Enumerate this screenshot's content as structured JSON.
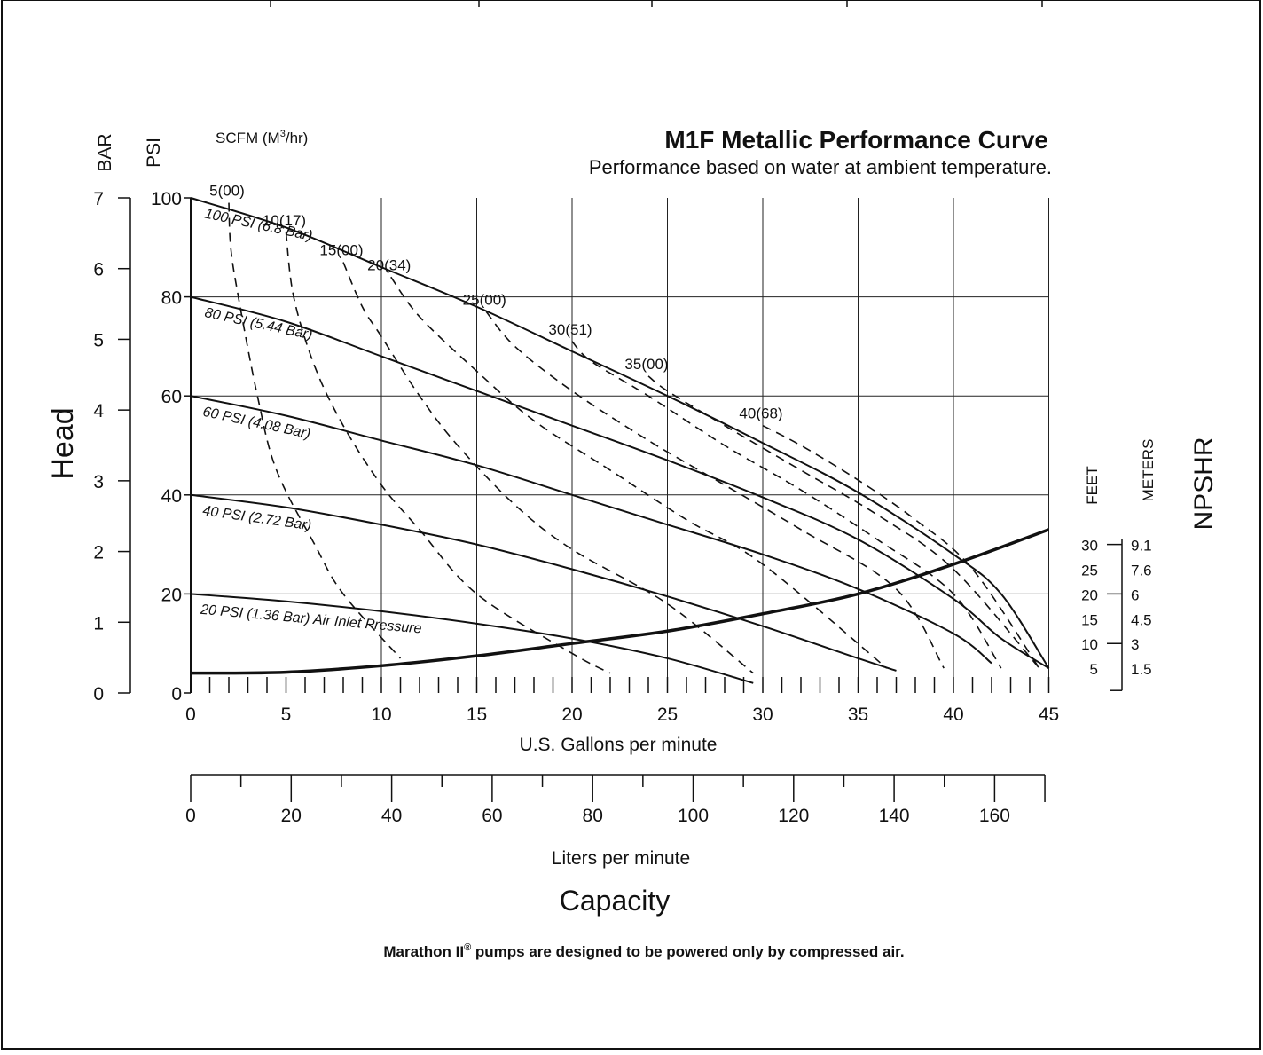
{
  "chart_data": {
    "type": "line",
    "title": "M1F Metallic Performance Curve",
    "subtitle": "Performance based on water at ambient temperature.",
    "y_axes": {
      "bar": {
        "label": "BAR",
        "ticks": [
          "0",
          "1",
          "2",
          "3",
          "4",
          "5",
          "6",
          "7"
        ],
        "range": [
          0,
          7
        ]
      },
      "psi": {
        "label": "PSI",
        "ticks": [
          "0",
          "20",
          "40",
          "60",
          "80",
          "100"
        ],
        "range": [
          0,
          100
        ]
      },
      "title": "Head"
    },
    "x_axes": {
      "gpm": {
        "label": "U.S. Gallons per minute",
        "ticks": [
          "0",
          "5",
          "10",
          "15",
          "20",
          "25",
          "30",
          "35",
          "40",
          "45"
        ],
        "range": [
          0,
          45
        ]
      },
      "lpm": {
        "label": "Liters per minute",
        "ticks": [
          "0",
          "20",
          "40",
          "60",
          "80",
          "100",
          "120",
          "140",
          "160"
        ],
        "range": [
          0,
          170
        ]
      },
      "title": "Capacity"
    },
    "npshr_axis": {
      "title": "NPSHR",
      "feet_label": "FEET",
      "meters_label": "METERS",
      "feet_ticks": [
        "5",
        "10",
        "15",
        "20",
        "25",
        "30"
      ],
      "meters_ticks": [
        "1.5",
        "3",
        "4.5",
        "6",
        "7.6",
        "9.1"
      ]
    },
    "air_flow_label": "SCFM (M³/hr)",
    "grid": true,
    "air_pressure_series": [
      {
        "name": "100 PSI (6.8 Bar)",
        "points": [
          [
            0,
            100
          ],
          [
            5,
            94
          ],
          [
            10,
            86
          ],
          [
            15,
            78
          ],
          [
            20,
            69
          ],
          [
            25,
            60
          ],
          [
            30,
            50.5
          ],
          [
            35,
            40.5
          ],
          [
            40,
            28
          ],
          [
            42.5,
            20
          ],
          [
            45,
            5
          ]
        ]
      },
      {
        "name": "80 PSI (5.44 Bar)",
        "points": [
          [
            0,
            80
          ],
          [
            5,
            75
          ],
          [
            10,
            68
          ],
          [
            15,
            61
          ],
          [
            20,
            54
          ],
          [
            25,
            47
          ],
          [
            30,
            39.5
          ],
          [
            35,
            31
          ],
          [
            40,
            19
          ],
          [
            42.5,
            11
          ],
          [
            45,
            5
          ]
        ]
      },
      {
        "name": "60 PSI (4.08 Bar)",
        "points": [
          [
            0,
            60
          ],
          [
            5,
            56
          ],
          [
            10,
            51
          ],
          [
            15,
            46
          ],
          [
            20,
            40
          ],
          [
            25,
            34
          ],
          [
            30,
            28
          ],
          [
            35,
            21
          ],
          [
            40,
            12
          ],
          [
            42,
            6
          ]
        ]
      },
      {
        "name": "40 PSI (2.72 Bar)",
        "points": [
          [
            0,
            40
          ],
          [
            5,
            37.5
          ],
          [
            10,
            34
          ],
          [
            15,
            30
          ],
          [
            20,
            25
          ],
          [
            25,
            19.5
          ],
          [
            30,
            13.5
          ],
          [
            35,
            7
          ],
          [
            37,
            4.5
          ]
        ]
      },
      {
        "name": "20 PSI (1.36 Bar) Air Inlet Pressure",
        "points": [
          [
            0,
            20
          ],
          [
            5,
            18.5
          ],
          [
            10,
            16.5
          ],
          [
            15,
            14
          ],
          [
            20,
            11
          ],
          [
            25,
            7
          ],
          [
            29.5,
            2
          ]
        ]
      }
    ],
    "air_consumption_series": [
      {
        "name": "5(00)",
        "points": [
          [
            2,
            99
          ],
          [
            2.1,
            90
          ],
          [
            2.5,
            80
          ],
          [
            3.5,
            60
          ],
          [
            4.5,
            45
          ],
          [
            6.5,
            30
          ],
          [
            8,
            20
          ],
          [
            11,
            7
          ]
        ]
      },
      {
        "name": "10(17)",
        "points": [
          [
            5,
            93
          ],
          [
            5.4,
            80
          ],
          [
            6.5,
            66
          ],
          [
            8,
            54
          ],
          [
            10,
            42
          ],
          [
            12,
            33
          ],
          [
            15,
            20
          ],
          [
            20,
            8
          ],
          [
            22,
            4
          ]
        ]
      },
      {
        "name": "15(00)",
        "points": [
          [
            8,
            87
          ],
          [
            9,
            78
          ],
          [
            10,
            72
          ],
          [
            12,
            60
          ],
          [
            14,
            50
          ],
          [
            17,
            38
          ],
          [
            20,
            29
          ],
          [
            25,
            18
          ],
          [
            29.5,
            4
          ]
        ]
      },
      {
        "name": "20(34)",
        "points": [
          [
            10.5,
            84
          ],
          [
            12,
            76
          ],
          [
            15,
            65
          ],
          [
            18,
            55
          ],
          [
            22,
            45
          ],
          [
            26,
            35
          ],
          [
            30,
            26
          ],
          [
            36.5,
            5
          ]
        ]
      },
      {
        "name": "25(00)",
        "points": [
          [
            15.5,
            77
          ],
          [
            17,
            70
          ],
          [
            20,
            61
          ],
          [
            24,
            51
          ],
          [
            28,
            42
          ],
          [
            32,
            33
          ],
          [
            37,
            21
          ],
          [
            39.5,
            5
          ]
        ]
      },
      {
        "name": "30(51)",
        "points": [
          [
            20,
            71
          ],
          [
            21,
            67
          ],
          [
            24,
            60
          ],
          [
            28,
            50
          ],
          [
            32,
            41
          ],
          [
            36,
            31
          ],
          [
            40,
            20
          ],
          [
            42.5,
            5
          ]
        ]
      },
      {
        "name": "35(00)",
        "points": [
          [
            24,
            64
          ],
          [
            25,
            61
          ],
          [
            28,
            54
          ],
          [
            32,
            45
          ],
          [
            36,
            36
          ],
          [
            40,
            25
          ],
          [
            44.5,
            5
          ]
        ]
      },
      {
        "name": "40(68)",
        "points": [
          [
            30,
            54
          ],
          [
            32,
            50
          ],
          [
            35,
            43
          ],
          [
            38,
            35
          ],
          [
            41,
            25
          ],
          [
            44.5,
            5
          ]
        ]
      }
    ],
    "npshr_curve": {
      "name": "NPSHR",
      "points": [
        [
          0,
          4
        ],
        [
          5,
          4.2
        ],
        [
          10,
          5.5
        ],
        [
          15,
          7.5
        ],
        [
          20,
          10
        ],
        [
          25,
          12.5
        ],
        [
          30,
          16
        ],
        [
          35,
          20
        ],
        [
          40,
          26
        ],
        [
          45,
          33
        ]
      ]
    }
  },
  "footer": {
    "text_before": "Marathon II",
    "registered": "®",
    "text_after": " pumps are designed to be powered only by compressed air."
  }
}
